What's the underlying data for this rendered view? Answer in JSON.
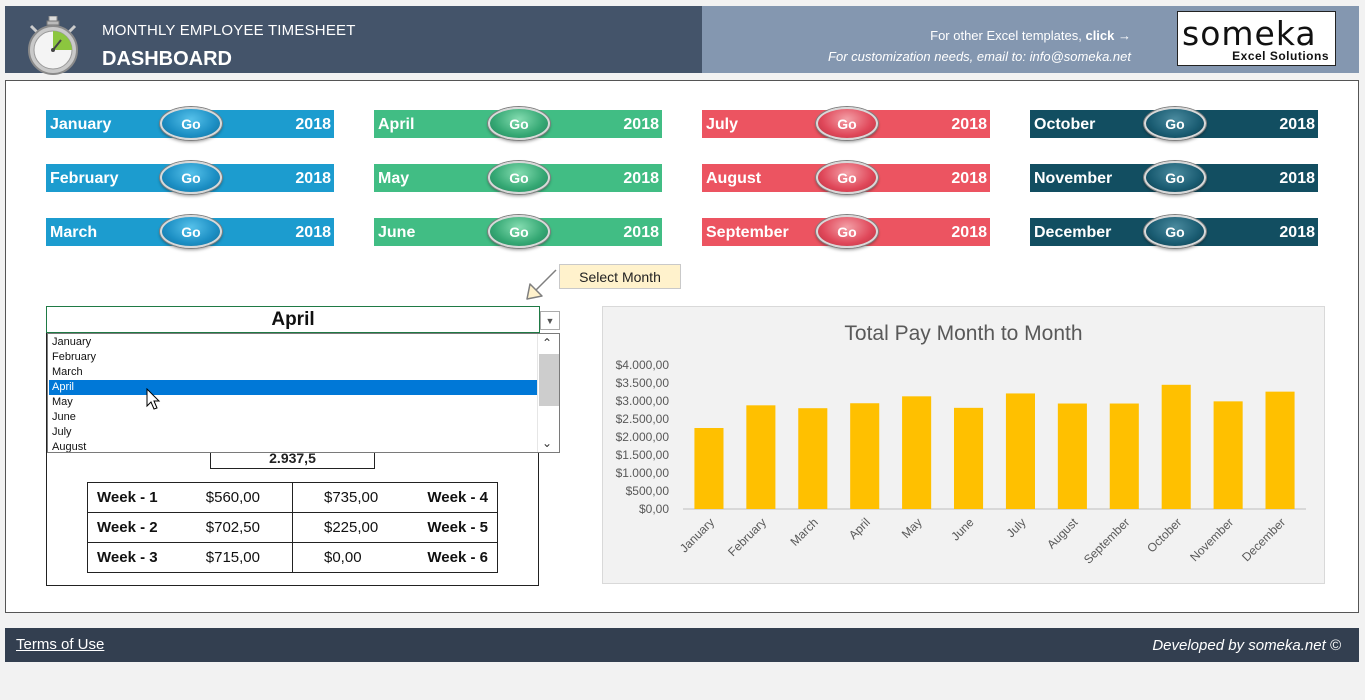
{
  "header": {
    "subtitle": "MONTHLY EMPLOYEE TIMESHEET",
    "title": "DASHBOARD",
    "templates_text": "For other Excel templates, ",
    "templates_link": "click →",
    "customization_text": "For customization needs, email to: info@someka.net",
    "logo_word": "someka",
    "logo_sub": "Excel Solutions"
  },
  "month_buttons": [
    {
      "name": "January",
      "year": "2018",
      "go": "Go",
      "color": "#1c9ccf"
    },
    {
      "name": "February",
      "year": "2018",
      "go": "Go",
      "color": "#1c9ccf"
    },
    {
      "name": "March",
      "year": "2018",
      "go": "Go",
      "color": "#1c9ccf"
    },
    {
      "name": "April",
      "year": "2018",
      "go": "Go",
      "color": "#41bd84"
    },
    {
      "name": "May",
      "year": "2018",
      "go": "Go",
      "color": "#41bd84"
    },
    {
      "name": "June",
      "year": "2018",
      "go": "Go",
      "color": "#41bd84"
    },
    {
      "name": "July",
      "year": "2018",
      "go": "Go",
      "color": "#ec5461"
    },
    {
      "name": "August",
      "year": "2018",
      "go": "Go",
      "color": "#ec5461"
    },
    {
      "name": "September",
      "year": "2018",
      "go": "Go",
      "color": "#ec5461"
    },
    {
      "name": "October",
      "year": "2018",
      "go": "Go",
      "color": "#124e61"
    },
    {
      "name": "November",
      "year": "2018",
      "go": "Go",
      "color": "#124e61"
    },
    {
      "name": "December",
      "year": "2018",
      "go": "Go",
      "color": "#124e61"
    }
  ],
  "select_month_label": "Select Month",
  "dropdown": {
    "selected": "April",
    "options": [
      "January",
      "February",
      "March",
      "April",
      "May",
      "June",
      "July",
      "August"
    ]
  },
  "total_pay": "2.937,5",
  "weeks": [
    {
      "left_label": "Week - 1",
      "left_value": "$560,00",
      "right_value": "$735,00",
      "right_label": "Week - 4"
    },
    {
      "left_label": "Week - 2",
      "left_value": "$702,50",
      "right_value": "$225,00",
      "right_label": "Week - 5"
    },
    {
      "left_label": "Week - 3",
      "left_value": "$715,00",
      "right_value": "$0,00",
      "right_label": "Week - 6"
    }
  ],
  "chart_data": {
    "type": "bar",
    "title": "Total Pay Month to Month",
    "categories": [
      "January",
      "February",
      "March",
      "April",
      "May",
      "June",
      "July",
      "August",
      "September",
      "October",
      "November",
      "December"
    ],
    "values": [
      2250,
      2880,
      2800,
      2937.5,
      3130,
      2810,
      3210,
      2930,
      2930,
      3450,
      2990,
      3260
    ],
    "ylim": [
      0,
      4000
    ],
    "yticks": [
      "$0,00",
      "$500,00",
      "$1.000,00",
      "$1.500,00",
      "$2.000,00",
      "$2.500,00",
      "$3.000,00",
      "$3.500,00",
      "$4.000,00"
    ],
    "bar_color": "#ffc000",
    "grid": false
  },
  "footer": {
    "terms": "Terms of Use",
    "developed_by": "Developed by someka.net ©"
  }
}
